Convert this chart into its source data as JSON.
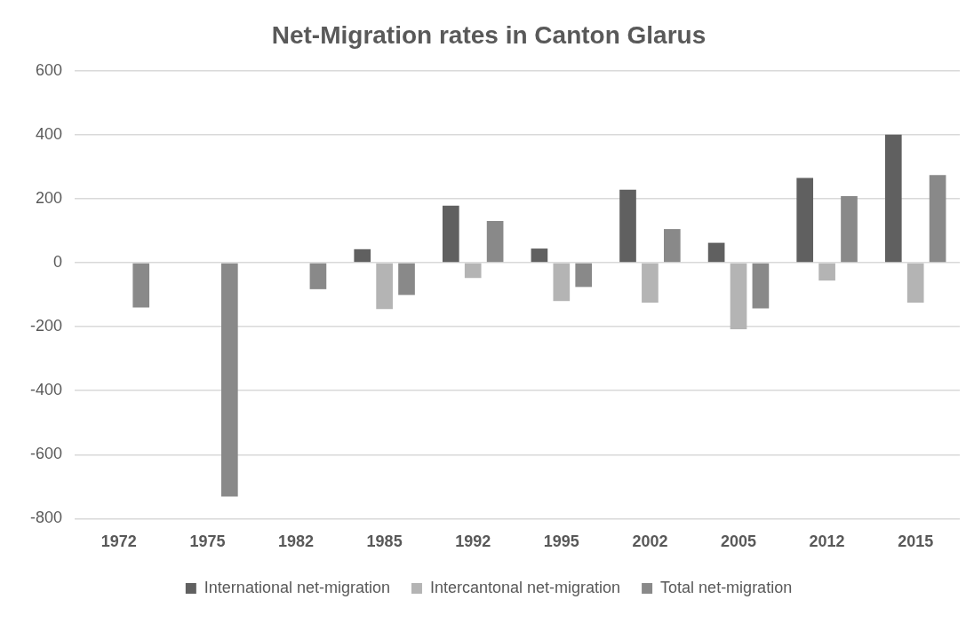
{
  "chart_data": {
    "type": "bar",
    "title": "Net-Migration rates in Canton Glarus",
    "categories": [
      "1972",
      "1975",
      "1982",
      "1985",
      "1992",
      "1995",
      "2002",
      "2005",
      "2012",
      "2015"
    ],
    "series": [
      {
        "name": "International net-migration",
        "color": "#606060",
        "values": [
          null,
          null,
          null,
          42,
          178,
          44,
          228,
          62,
          265,
          400
        ]
      },
      {
        "name": "Intercantonal net-migration",
        "color": "#b4b4b4",
        "values": [
          null,
          null,
          null,
          -145,
          -48,
          -120,
          -125,
          -208,
          -56,
          -125
        ]
      },
      {
        "name": "Total net-migration",
        "color": "#898989",
        "values": [
          -140,
          -731,
          -83,
          -101,
          130,
          -76,
          105,
          -143,
          208,
          274
        ]
      }
    ],
    "ylim": [
      -800,
      600
    ],
    "yticks": [
      -800,
      -600,
      -400,
      -200,
      0,
      200,
      400,
      600
    ],
    "grid": "y",
    "legend": "bottom"
  }
}
